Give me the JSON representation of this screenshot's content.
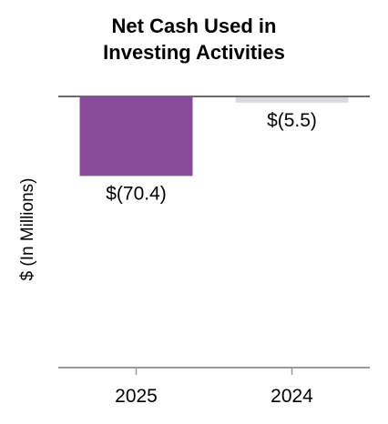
{
  "chart_data": {
    "type": "bar",
    "title_lines": [
      "Net Cash Used in",
      "Investing Activities"
    ],
    "ylabel": "$ (In Millions)",
    "xlabel": "",
    "categories": [
      "2025",
      "2024"
    ],
    "values": [
      -70.4,
      -5.5
    ],
    "data_labels": [
      "$(70.4)",
      "$(5.5)"
    ],
    "colors": [
      "#8a4a9c",
      "#d9d9e0"
    ],
    "ylim": [
      -240,
      0
    ],
    "grid": false,
    "legend": "none"
  }
}
